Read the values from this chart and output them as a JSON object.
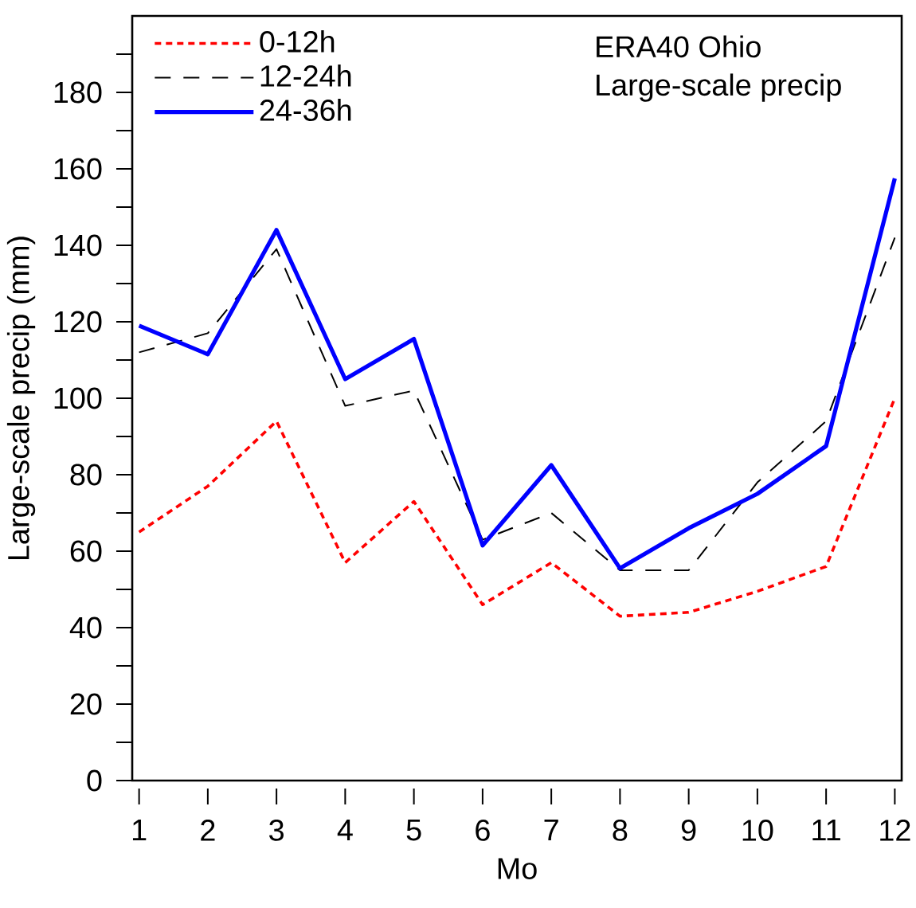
{
  "chart_data": {
    "type": "line",
    "xlabel": "Mo",
    "ylabel": "Large-scale precip (mm)",
    "annotations": [
      "ERA40 Ohio",
      "Large-scale precip"
    ],
    "x": [
      1,
      2,
      3,
      4,
      5,
      6,
      7,
      8,
      9,
      10,
      11,
      12
    ],
    "xlim": [
      0.9,
      12.1
    ],
    "xticks": [
      1,
      2,
      3,
      4,
      5,
      6,
      7,
      8,
      9,
      10,
      11,
      12
    ],
    "ylim": [
      0,
      200
    ],
    "yticks": [
      0,
      {
        "value": 10,
        "label": null
      },
      20,
      {
        "value": 30,
        "label": null
      },
      40,
      {
        "value": 50,
        "label": null
      },
      60,
      {
        "value": 70,
        "label": null
      },
      80,
      {
        "value": 90,
        "label": null
      },
      100,
      {
        "value": 110,
        "label": null
      },
      120,
      {
        "value": 130,
        "label": null
      },
      140,
      {
        "value": 150,
        "label": null
      },
      160,
      {
        "value": 170,
        "label": null
      },
      180,
      {
        "value": 190,
        "label": null
      }
    ],
    "legend": "top left",
    "grid": false,
    "marker": "none",
    "series": [
      {
        "name": "0-12h",
        "color": "#ff0000",
        "line_style": "dashed",
        "values": [
          65,
          77,
          94,
          57,
          73,
          46,
          57,
          43,
          44,
          49.5,
          56,
          100
        ]
      },
      {
        "name": "12-24h",
        "color": "#000000",
        "line_style": "loosely dashed",
        "values": [
          112,
          117,
          139,
          98,
          102,
          63,
          70,
          55,
          55,
          78,
          94,
          142
        ]
      },
      {
        "name": "24-36h",
        "color": "#0000ff",
        "line_style": "solid",
        "values": [
          119,
          111.5,
          144,
          105,
          115.5,
          61.5,
          82.5,
          55.5,
          66,
          75,
          87.5,
          157.5
        ]
      }
    ]
  }
}
